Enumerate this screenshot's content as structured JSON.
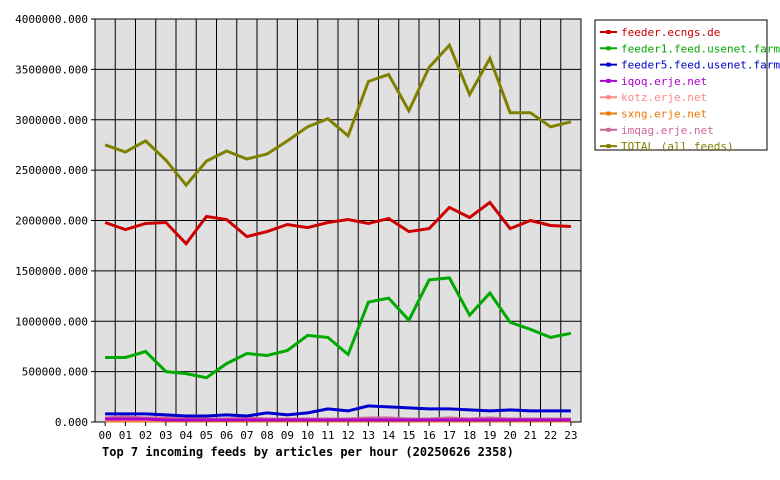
{
  "chart_data": {
    "type": "line",
    "title": "Top 7 incoming feeds by articles per hour (20250626 2358)",
    "xlabel": "",
    "ylabel": "",
    "grid": true,
    "legend_position": "top-right",
    "ylim": [
      0,
      4000000
    ],
    "y_ticks": [
      "0.000",
      "500000.000",
      "1000000.000",
      "1500000.000",
      "2000000.000",
      "2500000.000",
      "3000000.000",
      "3500000.000",
      "4000000.000"
    ],
    "y_tick_values": [
      0,
      500000,
      1000000,
      1500000,
      2000000,
      2500000,
      3000000,
      3500000,
      4000000
    ],
    "categories": [
      "00",
      "01",
      "02",
      "03",
      "04",
      "05",
      "06",
      "07",
      "08",
      "09",
      "10",
      "11",
      "12",
      "13",
      "14",
      "15",
      "16",
      "17",
      "18",
      "19",
      "20",
      "21",
      "22",
      "23"
    ],
    "series": [
      {
        "name": "feeder.ecngs.de",
        "color": "#cc0000",
        "values": [
          1980000,
          1910000,
          1970000,
          1980000,
          1770000,
          2040000,
          2010000,
          1840000,
          1890000,
          1960000,
          1930000,
          1980000,
          2010000,
          1970000,
          2020000,
          1890000,
          1920000,
          2130000,
          2030000,
          2180000,
          1920000,
          2000000,
          1950000,
          1940000
        ]
      },
      {
        "name": "feeder1.feed.usenet.farm",
        "color": "#00aa00",
        "values": [
          640000,
          640000,
          700000,
          500000,
          480000,
          440000,
          580000,
          680000,
          660000,
          710000,
          860000,
          840000,
          670000,
          1190000,
          1230000,
          1010000,
          1410000,
          1430000,
          1060000,
          1280000,
          990000,
          920000,
          840000,
          880000
        ]
      },
      {
        "name": "feeder5.feed.usenet.farm",
        "color": "#0000cc",
        "values": [
          80000,
          80000,
          80000,
          70000,
          60000,
          60000,
          70000,
          60000,
          90000,
          70000,
          90000,
          130000,
          110000,
          160000,
          150000,
          140000,
          130000,
          130000,
          120000,
          110000,
          120000,
          110000,
          110000,
          110000
        ]
      },
      {
        "name": "iqoq.erje.net",
        "color": "#aa00cc",
        "values": [
          30000,
          30000,
          30000,
          20000,
          20000,
          20000,
          20000,
          20000,
          20000,
          20000,
          20000,
          20000,
          20000,
          20000,
          20000,
          20000,
          20000,
          20000,
          20000,
          20000,
          20000,
          20000,
          20000,
          20000
        ]
      },
      {
        "name": "kotz.erje.net",
        "color": "#ff8888",
        "values": [
          20000,
          20000,
          20000,
          20000,
          20000,
          20000,
          20000,
          20000,
          20000,
          20000,
          20000,
          20000,
          20000,
          20000,
          20000,
          20000,
          20000,
          20000,
          20000,
          20000,
          20000,
          20000,
          20000,
          20000
        ]
      },
      {
        "name": "sxng.erje.net",
        "color": "#ee7700",
        "values": [
          10000,
          10000,
          10000,
          10000,
          10000,
          10000,
          10000,
          10000,
          10000,
          10000,
          10000,
          10000,
          10000,
          10000,
          10000,
          10000,
          10000,
          10000,
          10000,
          10000,
          10000,
          10000,
          10000,
          10000
        ]
      },
      {
        "name": "imqag.erje.net",
        "color": "#cc6699",
        "values": [
          40000,
          50000,
          40000,
          40000,
          30000,
          30000,
          30000,
          40000,
          30000,
          30000,
          30000,
          30000,
          30000,
          40000,
          40000,
          30000,
          30000,
          40000,
          30000,
          40000,
          30000,
          30000,
          30000,
          30000
        ]
      },
      {
        "name": "TOTAL (all feeds)",
        "color": "#808000",
        "values": [
          2750000,
          2680000,
          2790000,
          2600000,
          2350000,
          2590000,
          2690000,
          2610000,
          2660000,
          2790000,
          2930000,
          3010000,
          2840000,
          3380000,
          3450000,
          3090000,
          3520000,
          3740000,
          3250000,
          3610000,
          3070000,
          3070000,
          2930000,
          2980000
        ]
      }
    ]
  }
}
